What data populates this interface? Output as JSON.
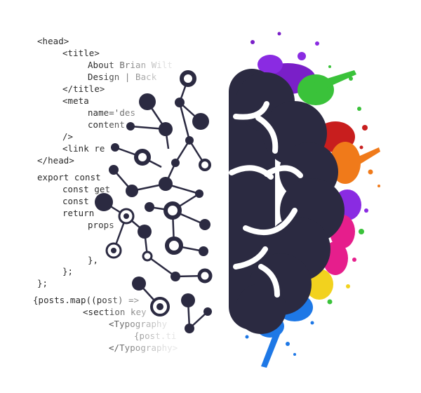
{
  "code_lines": [
    "<head>",
    "<title>",
    "About Brian Wilt",
    "Design | Back",
    "</title>",
    "<meta",
    "name='des",
    "content",
    "/>",
    "<link re",
    "</head>",
    "export const",
    "const get",
    "const",
    "return",
    "props",
    "},",
    "};",
    "};",
    "{posts.map((post) =>",
    "<section key",
    "<Typography",
    "{post.ti",
    "</Typography>"
  ],
  "colors": {
    "brain": "#2b2a41",
    "code_text": "#2a2a2a",
    "background": "#ffffff",
    "splash": [
      "#7a1fc8",
      "#3ac23a",
      "#c81e1e",
      "#f07a1a",
      "#e61e8c",
      "#f2d21e",
      "#1e78e6",
      "#8a2be2"
    ]
  },
  "icons": {
    "circuit": "circuit-network-icon",
    "brain": "brain-hemisphere-icon",
    "splash": "paint-splash-icon"
  }
}
